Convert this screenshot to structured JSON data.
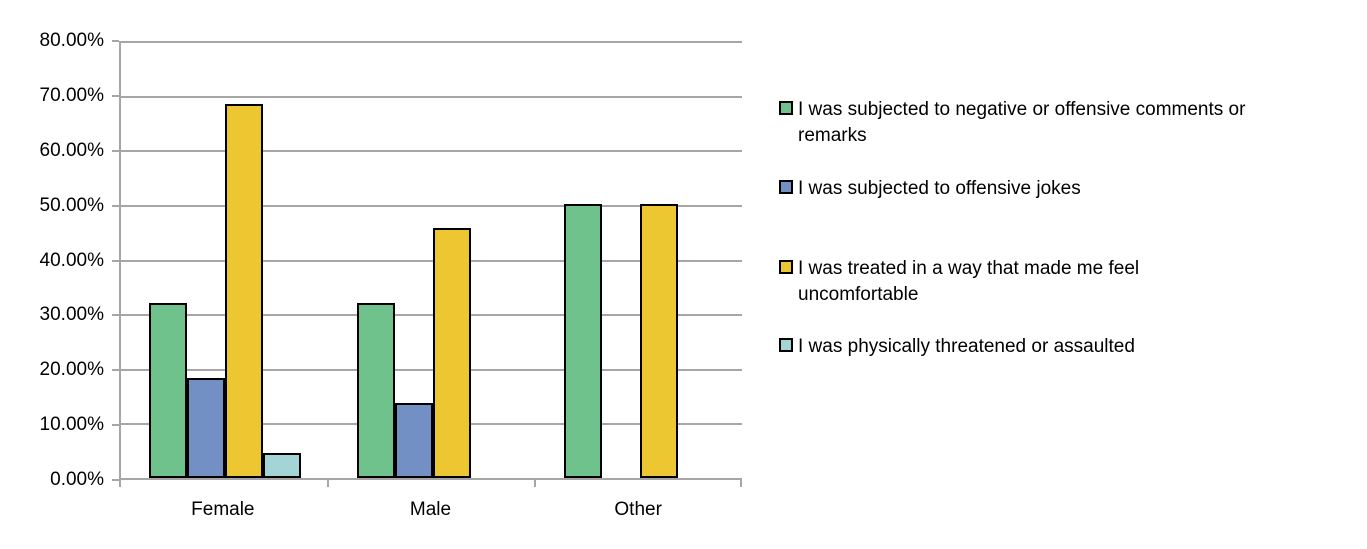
{
  "chart_data": {
    "type": "bar",
    "title": "",
    "xlabel": "",
    "ylabel": "",
    "categories": [
      "Female",
      "Male",
      "Other"
    ],
    "series": [
      {
        "name": "I was subjected to negative or offensive comments or remarks",
        "legend_lines": [
          "I was subjected to negative or offensive comments or",
          "remarks"
        ],
        "color": "#6FC28C",
        "values": [
          31.8,
          31.8,
          50.0
        ]
      },
      {
        "name": "I was subjected to offensive jokes",
        "legend_lines": [
          "I was subjected to offensive jokes"
        ],
        "color": "#7390C5",
        "values": [
          18.2,
          13.6,
          0
        ]
      },
      {
        "name": "I was treated in a way that made me feel uncomfortable",
        "legend_lines": [
          "I was treated in a way that made me feel",
          "uncomfortable"
        ],
        "color": "#EDC732",
        "values": [
          68.2,
          45.5,
          50.0
        ]
      },
      {
        "name": "I was physically threatened or assaulted",
        "legend_lines": [
          "I was physically threatened or assaulted"
        ],
        "color": "#A3D4D6",
        "values": [
          4.5,
          0,
          0
        ]
      }
    ],
    "y_axis": {
      "min": 0,
      "max": 80,
      "tick_step": 10,
      "tick_labels": [
        "0.00%",
        "10.00%",
        "20.00%",
        "30.00%",
        "40.00%",
        "50.00%",
        "60.00%",
        "70.00%",
        "80.00%"
      ]
    },
    "grid": true,
    "legend_position": "right",
    "colors": {
      "gridline": "#A6A6A6",
      "axis": "#A6A6A6",
      "bar_border": "#000000",
      "background": "#FFFFFF",
      "text": "#000000"
    }
  }
}
